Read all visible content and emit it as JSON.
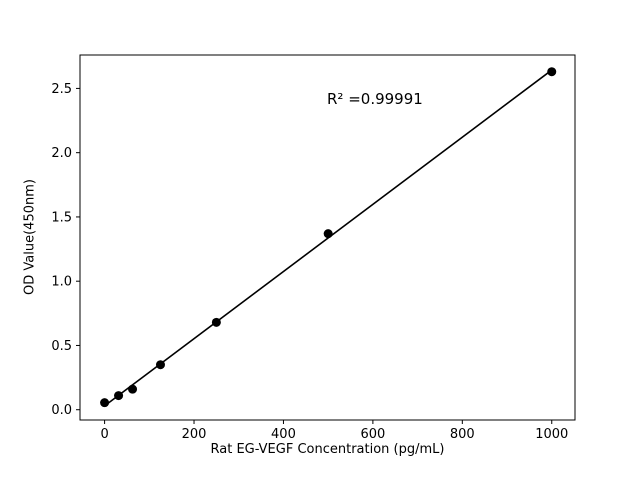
{
  "chart_data": {
    "type": "scatter",
    "title": "",
    "xlabel": "Rat EG-VEGF Concentration (pg/mL)",
    "ylabel": "OD Value(450nm)",
    "annotation": {
      "text": "R² =0.99991"
    },
    "x": [
      0,
      31.25,
      62.5,
      125,
      250,
      500,
      1000
    ],
    "y": [
      0.055,
      0.11,
      0.16,
      0.35,
      0.68,
      1.37,
      2.63
    ],
    "fit_line": true,
    "xlim": [
      -55,
      1052
    ],
    "ylim": [
      -0.08,
      2.76
    ],
    "xticks": [
      0,
      200,
      400,
      600,
      800,
      1000
    ],
    "yticks": [
      0.0,
      0.5,
      1.0,
      1.5,
      2.0,
      2.5
    ],
    "ytick_decimals": 1,
    "grid": false,
    "legend": "none",
    "marker_color": "#000000",
    "line_color": "#000000",
    "axis_color": "#000000",
    "background": "#ffffff"
  }
}
